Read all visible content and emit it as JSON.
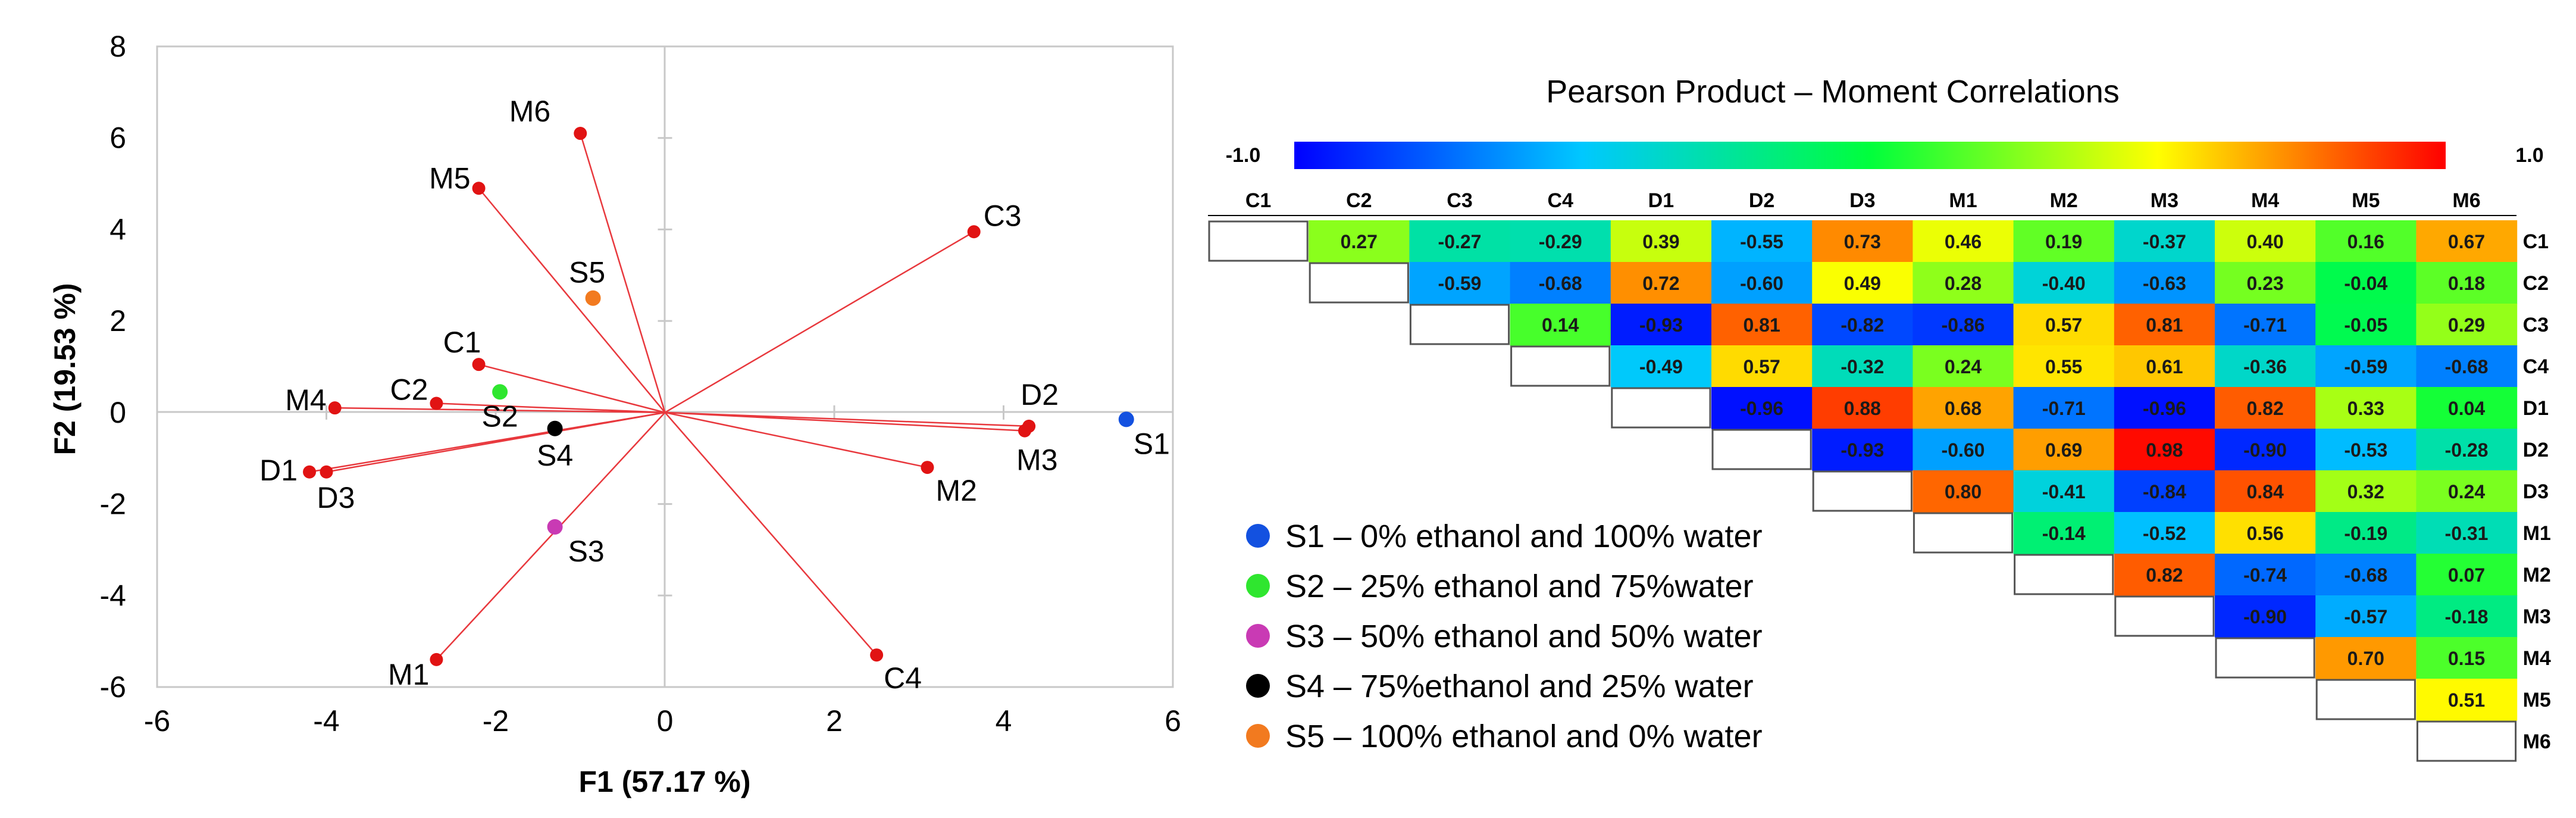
{
  "colors": {
    "vector": "#e8383d",
    "point": "#e11313",
    "S1": "#1351e0",
    "S2": "#2fe62f",
    "S3": "#c93ab4",
    "S4": "#000000",
    "S5": "#f27a1f",
    "grid": "#c8c8c8"
  },
  "chart_data": [
    {
      "type": "scatter",
      "subtype": "biplot",
      "title": "",
      "xlabel": "F1 (57.17 %)",
      "ylabel": "F2 (19.53 %)",
      "xlim": [
        -6,
        6
      ],
      "ylim": [
        -6,
        8
      ],
      "xticks": [
        -6,
        -4,
        -2,
        0,
        2,
        4,
        6
      ],
      "yticks": [
        -6,
        -4,
        -2,
        0,
        2,
        4,
        6,
        8
      ],
      "xtick_labels": [
        "-6",
        "-4",
        "-2",
        "0",
        "2",
        "4",
        "6"
      ],
      "ytick_labels": [
        "-6",
        "-4",
        "-2",
        "0",
        "2",
        "4",
        "6",
        "8"
      ],
      "variables": [
        {
          "name": "M6",
          "x": -1.0,
          "y": 6.1
        },
        {
          "name": "M5",
          "x": -2.2,
          "y": 4.9
        },
        {
          "name": "C3",
          "x": 3.65,
          "y": 3.95
        },
        {
          "name": "C1",
          "x": -2.2,
          "y": 1.05
        },
        {
          "name": "C2",
          "x": -2.7,
          "y": 0.2
        },
        {
          "name": "M4",
          "x": -3.9,
          "y": 0.1
        },
        {
          "name": "D1",
          "x": -4.2,
          "y": -1.3
        },
        {
          "name": "D3",
          "x": -4.0,
          "y": -1.3
        },
        {
          "name": "M1",
          "x": -2.7,
          "y": -5.4
        },
        {
          "name": "C4",
          "x": 2.5,
          "y": -5.3
        },
        {
          "name": "M2",
          "x": 3.1,
          "y": -1.2
        },
        {
          "name": "D2",
          "x": 4.3,
          "y": -0.3
        },
        {
          "name": "M3",
          "x": 4.25,
          "y": -0.4
        }
      ],
      "observations": [
        {
          "name": "S1",
          "x": 5.45,
          "y": -0.15
        },
        {
          "name": "S2",
          "x": -1.95,
          "y": 0.45
        },
        {
          "name": "S3",
          "x": -1.3,
          "y": -2.5
        },
        {
          "name": "S4",
          "x": -1.3,
          "y": -0.35
        },
        {
          "name": "S5",
          "x": -0.85,
          "y": 2.5
        }
      ],
      "legend": [
        {
          "key": "S1",
          "label": "S1 – 0% ethanol and 100% water"
        },
        {
          "key": "S2",
          "label": "S2 – 25% ethanol and 75%water"
        },
        {
          "key": "S3",
          "label": "S3 – 50% ethanol and 50% water"
        },
        {
          "key": "S4",
          "label": "S4 – 75%ethanol and 25% water"
        },
        {
          "key": "S5",
          "label": "S5 – 100% ethanol and 0% water"
        }
      ]
    },
    {
      "type": "heatmap",
      "title": "Pearson Product – Moment Correlations",
      "colorbar_min_label": "-1.0",
      "colorbar_max_label": "1.0",
      "vmin": -1.0,
      "vmax": 1.0,
      "columns": [
        "C1",
        "C2",
        "C3",
        "C4",
        "D1",
        "D2",
        "D3",
        "M1",
        "M2",
        "M3",
        "M4",
        "M5",
        "M6"
      ],
      "rows": [
        "C1",
        "C2",
        "C3",
        "C4",
        "D1",
        "D2",
        "D3",
        "M1",
        "M2",
        "M3",
        "M4",
        "M5",
        "M6"
      ],
      "values": [
        [
          null,
          "0.27",
          "-0.27",
          "-0.29",
          "0.39",
          "-0.55",
          "0.73",
          "0.46",
          "0.19",
          "-0.37",
          "0.40",
          "0.16",
          "0.67"
        ],
        [
          null,
          null,
          "-0.59",
          "-0.68",
          "0.72",
          "-0.60",
          "0.49",
          "0.28",
          "-0.40",
          "-0.63",
          "0.23",
          "-0.04",
          "0.18"
        ],
        [
          null,
          null,
          null,
          "0.14",
          "-0.93",
          "0.81",
          "-0.82",
          "-0.86",
          "0.57",
          "0.81",
          "-0.71",
          "-0.05",
          "0.29"
        ],
        [
          null,
          null,
          null,
          null,
          "-0.49",
          "0.57",
          "-0.32",
          "0.24",
          "0.55",
          "0.61",
          "-0.36",
          "-0.59",
          "-0.68"
        ],
        [
          null,
          null,
          null,
          null,
          null,
          "-0.96",
          "0.88",
          "0.68",
          "-0.71",
          "-0.96",
          "0.82",
          "0.33",
          "0.04"
        ],
        [
          null,
          null,
          null,
          null,
          null,
          null,
          "-0.93",
          "-0.60",
          "0.69",
          "0.98",
          "-0.90",
          "-0.53",
          "-0.28"
        ],
        [
          null,
          null,
          null,
          null,
          null,
          null,
          null,
          "0.80",
          "-0.41",
          "-0.84",
          "0.84",
          "0.32",
          "0.24"
        ],
        [
          null,
          null,
          null,
          null,
          null,
          null,
          null,
          null,
          "-0.14",
          "-0.52",
          "0.56",
          "-0.19",
          "-0.31"
        ],
        [
          null,
          null,
          null,
          null,
          null,
          null,
          null,
          null,
          null,
          "0.82",
          "-0.74",
          "-0.68",
          "0.07"
        ],
        [
          null,
          null,
          null,
          null,
          null,
          null,
          null,
          null,
          null,
          null,
          "-0.90",
          "-0.57",
          "-0.18"
        ],
        [
          null,
          null,
          null,
          null,
          null,
          null,
          null,
          null,
          null,
          null,
          null,
          "0.70",
          "0.15"
        ],
        [
          null,
          null,
          null,
          null,
          null,
          null,
          null,
          null,
          null,
          null,
          null,
          null,
          "0.51"
        ],
        [
          null,
          null,
          null,
          null,
          null,
          null,
          null,
          null,
          null,
          null,
          null,
          null,
          null
        ]
      ]
    }
  ]
}
